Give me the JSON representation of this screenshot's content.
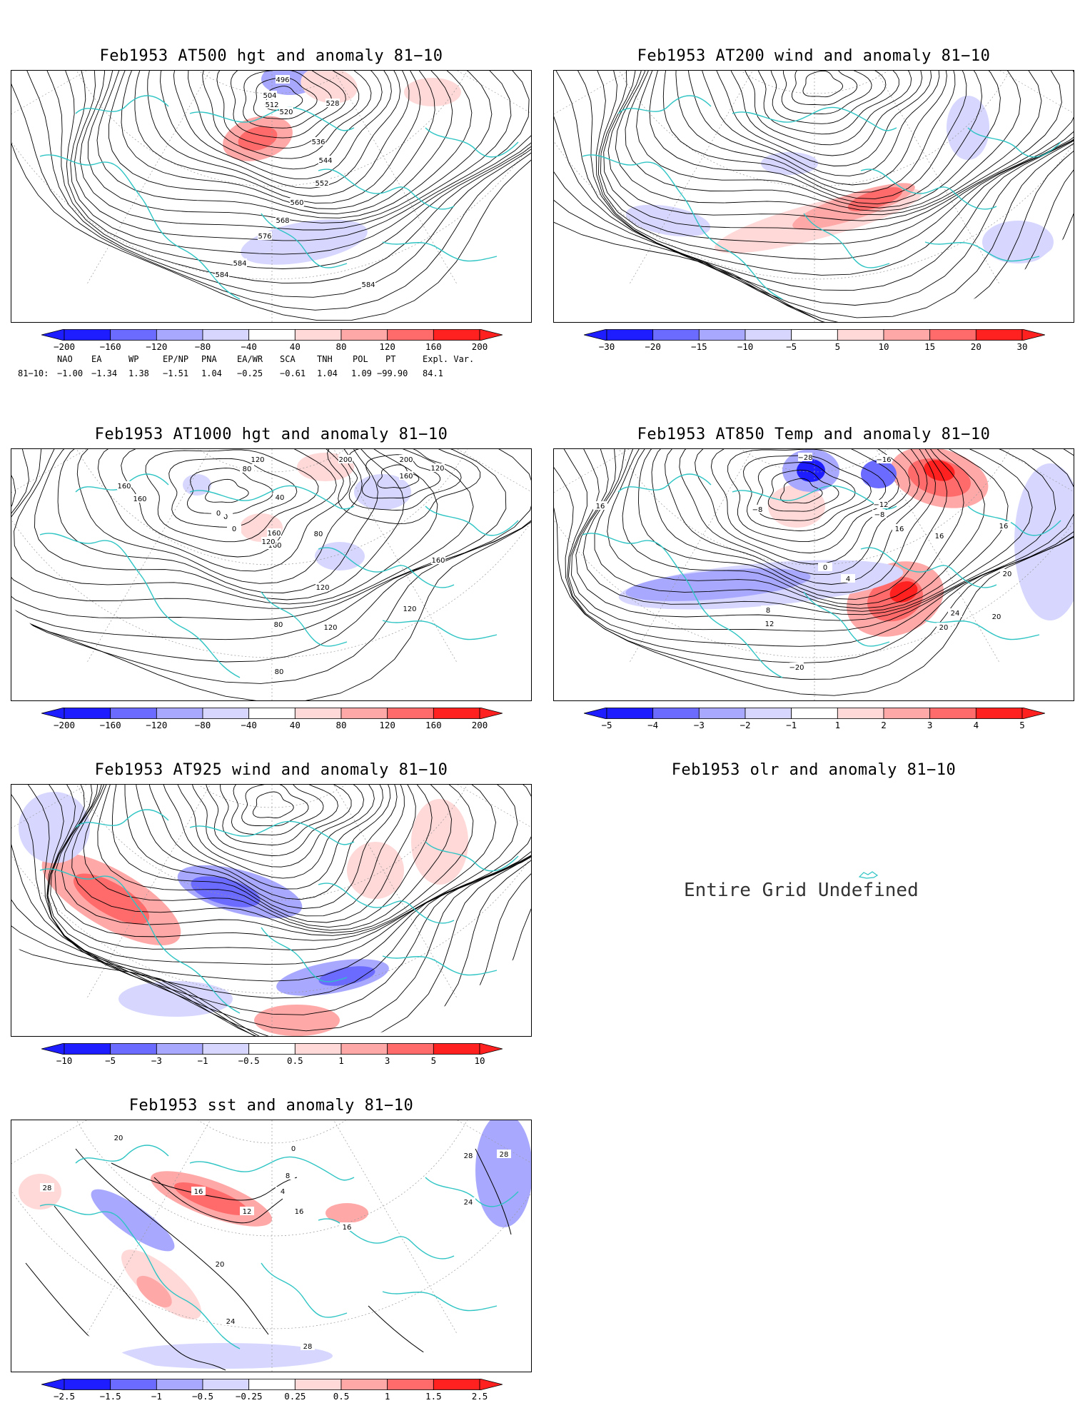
{
  "panels": [
    {
      "id": "hgt500",
      "title": "Feb1953 AT500 hgt and anomaly 81−10",
      "colorbar": [
        "−200",
        "−160",
        "−120",
        "−80",
        "−40",
        "40",
        "80",
        "120",
        "160",
        "200"
      ],
      "contour_labels": [
        "496",
        "504",
        "512",
        "520",
        "528",
        "536",
        "544",
        "552",
        "560",
        "568",
        "576",
        "584",
        "584",
        "584"
      ],
      "anomalies": [
        {
          "lon_pos": "center-north",
          "sign": "positive"
        },
        {
          "lon_pos": "pacific",
          "sign": "negative"
        }
      ]
    },
    {
      "id": "wind200",
      "title": "Feb1953 AT200 wind and anomaly 81−10",
      "colorbar": [
        "−30",
        "−20",
        "−15",
        "−10",
        "−5",
        "5",
        "10",
        "15",
        "20",
        "30"
      ]
    },
    {
      "id": "hgt1000",
      "title": "Feb1953 AT1000 hgt and anomaly 81−10",
      "colorbar": [
        "−200",
        "−160",
        "−120",
        "−80",
        "−40",
        "40",
        "80",
        "120",
        "160",
        "200"
      ],
      "contour_labels": [
        "120",
        "80",
        "160",
        "160",
        "40",
        "0",
        "0",
        "160",
        "160",
        "200",
        "200",
        "160",
        "120",
        "120",
        "80",
        "120",
        "120",
        "160",
        "120",
        "80",
        "80",
        "0"
      ]
    },
    {
      "id": "temp850",
      "title": "Feb1953 AT850 Temp and anomaly 81−10",
      "colorbar": [
        "−5",
        "−4",
        "−3",
        "−2",
        "−1",
        "1",
        "2",
        "3",
        "4",
        "5"
      ],
      "contour_labels": [
        "−28",
        "−16",
        "−12",
        "−8",
        "−8",
        "0",
        "4",
        "8",
        "12",
        "16",
        "16",
        "16",
        "16",
        "20",
        "20",
        "24",
        "20",
        "−20"
      ]
    },
    {
      "id": "wind925",
      "title": "Feb1953 AT925 wind and anomaly 81−10",
      "colorbar": [
        "−10",
        "−5",
        "−3",
        "−1",
        "−0.5",
        "0.5",
        "1",
        "3",
        "5",
        "10"
      ]
    },
    {
      "id": "olr",
      "title": "Feb1953 olr and anomaly 81−10",
      "undefined_text": "Entire Grid Undefined"
    },
    {
      "id": "sst",
      "title": "Feb1953 sst and anomaly 81−10",
      "colorbar": [
        "−2.5",
        "−1.5",
        "−1",
        "−0.5",
        "−0.25",
        "0.25",
        "0.5",
        "1",
        "1.5",
        "2.5"
      ],
      "contour_labels": [
        "20",
        "28",
        "16",
        "12",
        "8",
        "4",
        "0",
        "16",
        "16",
        "20",
        "24",
        "28",
        "28",
        "24",
        "28"
      ]
    }
  ],
  "teleconnections": {
    "headers": [
      "NAO",
      "EA",
      "WP",
      "EP/NP",
      "PNA",
      "EA/WR",
      "SCA",
      "TNH",
      "POL",
      "PT",
      "Expl. Var."
    ],
    "row_label": "81−10:",
    "values": [
      "−1.00",
      "−1.34",
      "1.38",
      "−1.51",
      "1.04",
      "−0.25",
      "−0.61",
      "1.04",
      "1.09",
      "−99.90",
      "84.1"
    ]
  },
  "colors": {
    "coast": "#2fc4c4",
    "blue_dark": "#1d1dff",
    "blue_mid": "#6b6bff",
    "blue_light": "#a8a8ff",
    "blue_pale": "#d6d6ff",
    "red_pale": "#ffd8d8",
    "red_light": "#ffa8a8",
    "red_mid": "#ff6b6b",
    "red_dark": "#ff2020"
  }
}
